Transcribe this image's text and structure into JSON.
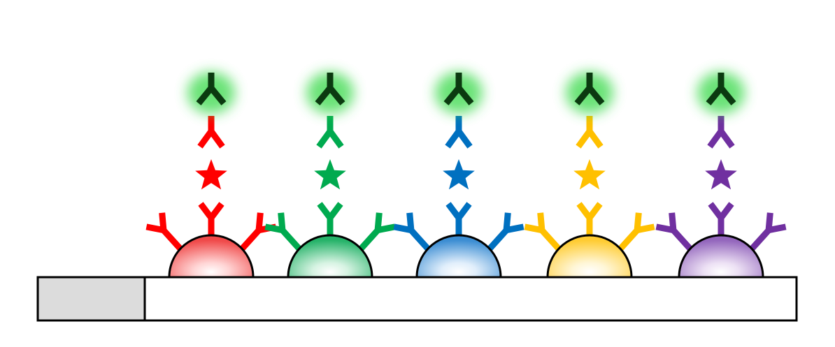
{
  "diagram": {
    "title": "",
    "assay_units": [
      {
        "id": "unit-1",
        "color_name": "red",
        "color": "#ff0000",
        "bead_highlight": "#ffd5d5",
        "bead_shadow": "#f04a4a"
      },
      {
        "id": "unit-2",
        "color_name": "green",
        "color": "#00aa4f",
        "bead_highlight": "#d6f3e2",
        "bead_shadow": "#27b36a"
      },
      {
        "id": "unit-3",
        "color_name": "blue",
        "color": "#0070c0",
        "bead_highlight": "#e0eefb",
        "bead_shadow": "#3d8ed3"
      },
      {
        "id": "unit-4",
        "color_name": "yellow",
        "color": "#ffc000",
        "bead_highlight": "#fff6d6",
        "bead_shadow": "#ffcc33"
      },
      {
        "id": "unit-5",
        "color_name": "purple",
        "color": "#7030a0",
        "bead_highlight": "#ece0f4",
        "bead_shadow": "#9467bd"
      }
    ],
    "detection_antibody": {
      "color": "#0b3a10",
      "glow_color": "#39d94a"
    },
    "substrate": {
      "cap_fill": "#dcdcdc",
      "strip_fill": "#ffffff",
      "border": "#000000"
    },
    "icons": [
      "capture-antibody-icon",
      "antigen-star-icon",
      "secondary-antibody-icon",
      "fluorescent-antibody-icon",
      "bead-icon"
    ]
  }
}
